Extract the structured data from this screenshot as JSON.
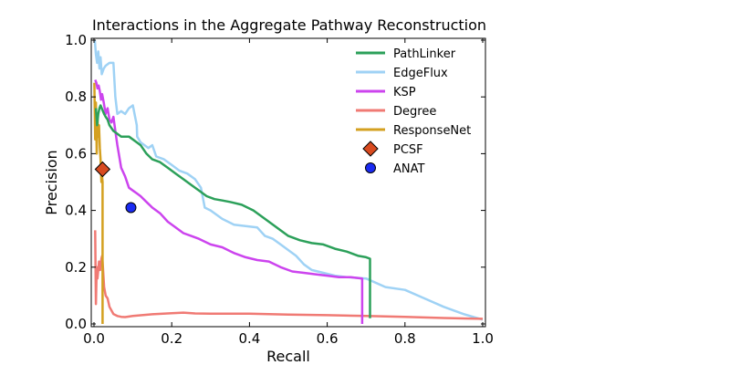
{
  "chart_data": {
    "type": "line",
    "title": "Interactions in the Aggregate Pathway Reconstruction",
    "xlabel": "Recall",
    "ylabel": "Precision",
    "xlim": [
      0.0,
      1.0
    ],
    "ylim": [
      0.0,
      1.0
    ],
    "xticks": [
      "0.0",
      "0.2",
      "0.4",
      "0.6",
      "0.8",
      "1.0"
    ],
    "yticks": [
      "0.0",
      "0.2",
      "0.4",
      "0.6",
      "0.8",
      "1.0"
    ],
    "grid": false,
    "legend_position": "top-right",
    "series": [
      {
        "name": "PathLinker",
        "color": "#2ca05a",
        "marker": "line",
        "x": [
          0.005,
          0.008,
          0.011,
          0.014,
          0.017,
          0.02,
          0.023,
          0.026,
          0.03,
          0.035,
          0.04,
          0.05,
          0.06,
          0.07,
          0.08,
          0.09,
          0.1,
          0.11,
          0.12,
          0.135,
          0.15,
          0.17,
          0.19,
          0.21,
          0.23,
          0.25,
          0.27,
          0.29,
          0.31,
          0.33,
          0.35,
          0.38,
          0.41,
          0.44,
          0.47,
          0.5,
          0.53,
          0.56,
          0.59,
          0.62,
          0.65,
          0.68,
          0.7,
          0.71,
          0.71
        ],
        "y": [
          0.76,
          0.7,
          0.74,
          0.76,
          0.77,
          0.76,
          0.75,
          0.74,
          0.73,
          0.72,
          0.7,
          0.68,
          0.67,
          0.66,
          0.66,
          0.66,
          0.65,
          0.64,
          0.63,
          0.6,
          0.58,
          0.57,
          0.55,
          0.53,
          0.51,
          0.49,
          0.47,
          0.45,
          0.44,
          0.435,
          0.43,
          0.42,
          0.4,
          0.37,
          0.34,
          0.31,
          0.295,
          0.285,
          0.28,
          0.265,
          0.255,
          0.24,
          0.235,
          0.23,
          0.02
        ]
      },
      {
        "name": "EdgeFlux",
        "color": "#9fd2f5",
        "marker": "line",
        "x": [
          0.002,
          0.005,
          0.008,
          0.011,
          0.014,
          0.017,
          0.02,
          0.025,
          0.03,
          0.04,
          0.05,
          0.055,
          0.06,
          0.07,
          0.08,
          0.09,
          0.1,
          0.11,
          0.111,
          0.12,
          0.13,
          0.14,
          0.15,
          0.16,
          0.18,
          0.2,
          0.22,
          0.24,
          0.26,
          0.275,
          0.285,
          0.3,
          0.33,
          0.36,
          0.39,
          0.42,
          0.44,
          0.46,
          0.48,
          0.5,
          0.52,
          0.54,
          0.56,
          0.59,
          0.62,
          0.65,
          0.7,
          0.75,
          0.8,
          0.85,
          0.9,
          0.95,
          1.0
        ],
        "y": [
          1.0,
          0.95,
          0.92,
          0.96,
          0.9,
          0.94,
          0.88,
          0.9,
          0.91,
          0.92,
          0.92,
          0.8,
          0.74,
          0.75,
          0.74,
          0.76,
          0.77,
          0.7,
          0.66,
          0.64,
          0.63,
          0.62,
          0.63,
          0.59,
          0.58,
          0.56,
          0.54,
          0.53,
          0.51,
          0.48,
          0.41,
          0.4,
          0.37,
          0.35,
          0.345,
          0.34,
          0.31,
          0.3,
          0.28,
          0.26,
          0.24,
          0.21,
          0.19,
          0.18,
          0.17,
          0.165,
          0.16,
          0.13,
          0.12,
          0.09,
          0.06,
          0.035,
          0.015
        ]
      },
      {
        "name": "KSP",
        "color": "#cc44ee",
        "marker": "line",
        "x": [
          0.003,
          0.006,
          0.009,
          0.012,
          0.015,
          0.018,
          0.021,
          0.025,
          0.03,
          0.035,
          0.04,
          0.045,
          0.05,
          0.055,
          0.06,
          0.07,
          0.08,
          0.09,
          0.1,
          0.11,
          0.12,
          0.135,
          0.15,
          0.17,
          0.19,
          0.21,
          0.23,
          0.25,
          0.27,
          0.3,
          0.33,
          0.36,
          0.39,
          0.42,
          0.45,
          0.48,
          0.51,
          0.54,
          0.57,
          0.6,
          0.63,
          0.66,
          0.69,
          0.69
        ],
        "y": [
          0.86,
          0.85,
          0.83,
          0.84,
          0.82,
          0.79,
          0.81,
          0.78,
          0.74,
          0.76,
          0.72,
          0.71,
          0.73,
          0.68,
          0.63,
          0.55,
          0.52,
          0.48,
          0.47,
          0.46,
          0.45,
          0.43,
          0.41,
          0.39,
          0.36,
          0.34,
          0.32,
          0.31,
          0.3,
          0.28,
          0.27,
          0.25,
          0.235,
          0.225,
          0.22,
          0.2,
          0.185,
          0.18,
          0.175,
          0.17,
          0.165,
          0.165,
          0.16,
          0.0
        ]
      },
      {
        "name": "Degree",
        "color": "#f07a74",
        "marker": "line",
        "x": [
          0.003,
          0.005,
          0.007,
          0.009,
          0.011,
          0.013,
          0.016,
          0.019,
          0.021,
          0.023,
          0.026,
          0.03,
          0.035,
          0.04,
          0.05,
          0.06,
          0.07,
          0.08,
          0.1,
          0.15,
          0.2,
          0.23,
          0.26,
          0.3,
          0.4,
          0.5,
          0.6,
          0.7,
          0.8,
          0.9,
          1.0
        ],
        "y": [
          0.33,
          0.07,
          0.2,
          0.16,
          0.19,
          0.22,
          0.19,
          0.23,
          0.24,
          0.2,
          0.13,
          0.1,
          0.09,
          0.06,
          0.035,
          0.028,
          0.025,
          0.024,
          0.028,
          0.034,
          0.038,
          0.04,
          0.037,
          0.036,
          0.036,
          0.033,
          0.031,
          0.028,
          0.025,
          0.021,
          0.018
        ]
      },
      {
        "name": "ResponseNet",
        "color": "#d4a020",
        "marker": "line",
        "x": [
          0.001,
          0.003,
          0.005,
          0.007,
          0.009,
          0.011,
          0.013,
          0.015,
          0.017,
          0.019,
          0.021,
          0.022,
          0.022
        ],
        "y": [
          0.85,
          0.65,
          0.78,
          0.6,
          0.73,
          0.66,
          0.7,
          0.62,
          0.58,
          0.5,
          0.52,
          0.5,
          0.0
        ]
      },
      {
        "name": "PCSF",
        "color": "#d84a1f",
        "marker": "diamond",
        "x": [
          0.022
        ],
        "y": [
          0.545
        ]
      },
      {
        "name": "ANAT",
        "color": "#1a2bf2",
        "marker": "circle",
        "x": [
          0.095
        ],
        "y": [
          0.41
        ]
      }
    ]
  }
}
